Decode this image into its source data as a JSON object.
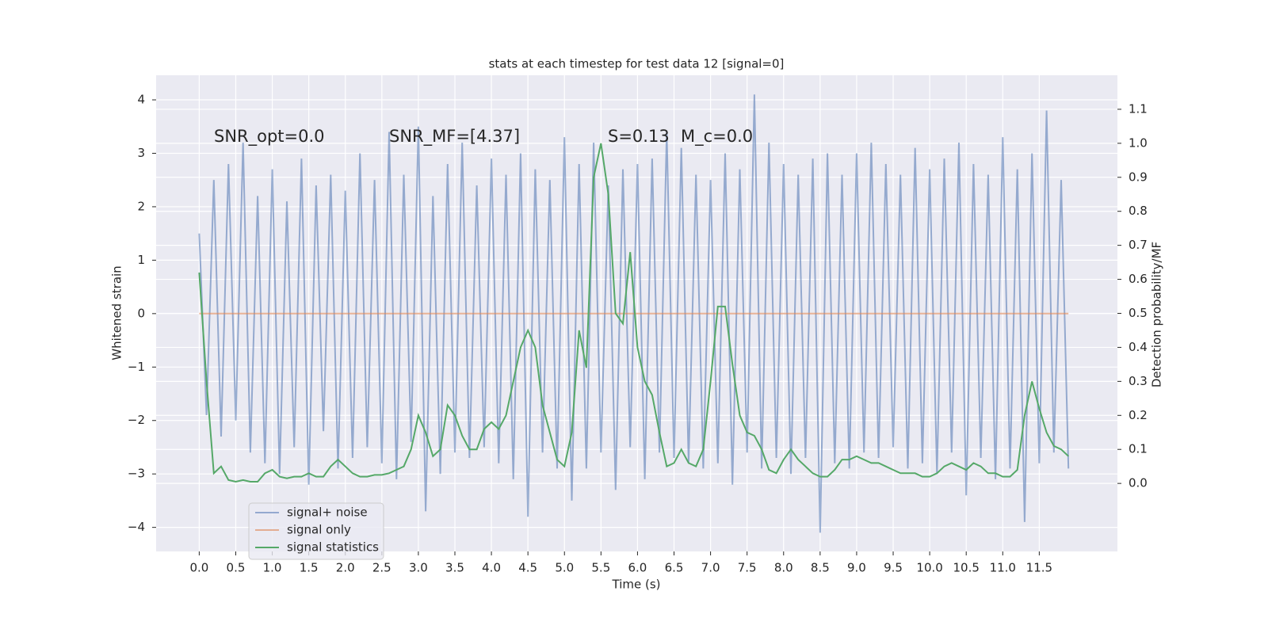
{
  "chart_data": {
    "type": "line",
    "title": "stats at each timestep for test data 12 [signal=0]",
    "xlabel": "Time (s)",
    "ylabel": "Whitened strain",
    "y2label": "Detection probability/MF",
    "annotations": [
      "SNR_opt=0.0",
      "SNR_MF=[4.37]",
      "S=0.13",
      "M_c=0.0"
    ],
    "grid": true,
    "legend": "lower left",
    "xlim": [
      -0.59,
      12.57
    ],
    "ylim": [
      -4.45,
      4.46
    ],
    "y2lim": [
      -0.2,
      1.2
    ],
    "xticks": [
      {
        "value": 0,
        "label": "0.0"
      },
      0.5,
      {
        "value": 1,
        "label": "1.0"
      },
      1.5,
      {
        "value": 2,
        "label": "2.0"
      },
      2.5,
      {
        "value": 3,
        "label": "3.0"
      },
      3.5,
      {
        "value": 4,
        "label": "4.0"
      },
      4.5,
      {
        "value": 5,
        "label": "5.0"
      },
      5.5,
      {
        "value": 6,
        "label": "6.0"
      },
      6.5,
      {
        "value": 7,
        "label": "7.0"
      },
      7.5,
      {
        "value": 8,
        "label": "8.0"
      },
      8.5,
      {
        "value": 9,
        "label": "9.0"
      },
      9.5,
      {
        "value": 10,
        "label": "10.0"
      },
      10.5,
      {
        "value": 11,
        "label": "11.0"
      },
      11.5
    ],
    "yticks": [
      {
        "value": -4,
        "label": "−4"
      },
      {
        "value": -3,
        "label": "−3"
      },
      {
        "value": -2,
        "label": "−2"
      },
      {
        "value": -1,
        "label": "−1"
      },
      0,
      1,
      2,
      3,
      4
    ],
    "y2ticks": [
      {
        "value": 0,
        "label": "0.0"
      },
      0.1,
      0.2,
      0.3,
      0.4,
      0.5,
      0.6,
      0.7,
      0.8,
      0.9,
      {
        "value": 1,
        "label": "1.0"
      },
      1.1
    ],
    "x": [
      0,
      0.1,
      0.2,
      0.3,
      0.4,
      0.5,
      0.6,
      0.7,
      0.8,
      0.9,
      1,
      1.1,
      1.2,
      1.3,
      1.4,
      1.5,
      1.6,
      1.7,
      1.8,
      1.9,
      2,
      2.1,
      2.2,
      2.3,
      2.4,
      2.5,
      2.6,
      2.7,
      2.8,
      2.9,
      3,
      3.1,
      3.2,
      3.3,
      3.4,
      3.5,
      3.6,
      3.7,
      3.8,
      3.9,
      4,
      4.1,
      4.2,
      4.3,
      4.4,
      4.5,
      4.6,
      4.7,
      4.8,
      4.9,
      5,
      5.1,
      5.2,
      5.3,
      5.4,
      5.5,
      5.6,
      5.7,
      5.8,
      5.9,
      6,
      6.1,
      6.2,
      6.3,
      6.4,
      6.5,
      6.6,
      6.7,
      6.8,
      6.9,
      7,
      7.1,
      7.2,
      7.3,
      7.4,
      7.5,
      7.6,
      7.7,
      7.8,
      7.9,
      8,
      8.1,
      8.2,
      8.3,
      8.4,
      8.5,
      8.6,
      8.7,
      8.8,
      8.9,
      9,
      9.1,
      9.2,
      9.3,
      9.4,
      9.5,
      9.6,
      9.7,
      9.8,
      9.9,
      10,
      10.1,
      10.2,
      10.3,
      10.4,
      10.5,
      10.6,
      10.7,
      10.8,
      10.9,
      11,
      11.1,
      11.2,
      11.3,
      11.4,
      11.5,
      11.6,
      11.7,
      11.8,
      11.9
    ],
    "series": [
      {
        "name": "signal+ noise",
        "color": "#4c72b0",
        "opacity": 0.55,
        "values": [
          1.5,
          -1.9,
          2.5,
          -2.3,
          2.8,
          -2.0,
          3.2,
          -2.6,
          2.2,
          -2.8,
          2.7,
          -3.0,
          2.1,
          -2.5,
          2.9,
          -3.2,
          2.4,
          -2.2,
          2.6,
          -2.9,
          2.3,
          -2.7,
          3.0,
          -2.5,
          2.5,
          -2.8,
          3.4,
          -3.1,
          2.6,
          -2.4,
          3.5,
          -3.7,
          2.2,
          -3.0,
          2.8,
          -2.6,
          3.2,
          -2.7,
          2.4,
          -2.5,
          2.9,
          -2.8,
          2.6,
          -3.1,
          3.0,
          -3.8,
          2.7,
          -2.6,
          2.5,
          -2.9,
          3.3,
          -3.5,
          2.8,
          -2.9,
          3.2,
          -2.6,
          2.4,
          -3.3,
          2.7,
          -2.5,
          2.8,
          -3.1,
          2.9,
          -2.6,
          3.4,
          -2.7,
          3.1,
          -2.8,
          2.6,
          -2.9,
          2.5,
          -2.8,
          3.0,
          -3.2,
          2.7,
          -2.6,
          4.1,
          -2.9,
          3.2,
          -2.7,
          2.8,
          -3.0,
          2.6,
          -2.7,
          2.9,
          -4.1,
          3.0,
          -2.8,
          2.6,
          -2.9,
          3.0,
          -2.6,
          3.2,
          -2.7,
          2.8,
          -2.5,
          2.6,
          -2.9,
          3.1,
          -2.8,
          2.7,
          -3.0,
          2.9,
          -2.6,
          3.2,
          -3.4,
          2.8,
          -2.7,
          2.6,
          -3.1,
          3.3,
          -2.9,
          2.7,
          -3.9,
          3.0,
          -2.8,
          3.8,
          -2.6,
          2.5,
          -2.9
        ]
      },
      {
        "name": "signal only",
        "color": "#dd8452",
        "opacity": 0.6,
        "values": [
          0,
          0,
          0,
          0,
          0,
          0,
          0,
          0,
          0,
          0,
          0,
          0,
          0,
          0,
          0,
          0,
          0,
          0,
          0,
          0,
          0,
          0,
          0,
          0,
          0,
          0,
          0,
          0,
          0,
          0,
          0,
          0,
          0,
          0,
          0,
          0,
          0,
          0,
          0,
          0,
          0,
          0,
          0,
          0,
          0,
          0,
          0,
          0,
          0,
          0,
          0,
          0,
          0,
          0,
          0,
          0,
          0,
          0,
          0,
          0,
          0,
          0,
          0,
          0,
          0,
          0,
          0,
          0,
          0,
          0,
          0,
          0,
          0,
          0,
          0,
          0,
          0,
          0,
          0,
          0,
          0,
          0,
          0,
          0,
          0,
          0,
          0,
          0,
          0,
          0,
          0,
          0,
          0,
          0,
          0,
          0,
          0,
          0,
          0,
          0,
          0,
          0,
          0,
          0,
          0,
          0,
          0,
          0,
          0,
          0,
          0,
          0,
          0,
          0,
          0,
          0,
          0,
          0,
          0,
          0
        ]
      },
      {
        "name": "signal statistics",
        "color": "#55a868",
        "opacity": 1,
        "axis": "y2",
        "values": [
          0.62,
          0.3,
          0.03,
          0.05,
          0.01,
          0.005,
          0.01,
          0.005,
          0.005,
          0.03,
          0.04,
          0.02,
          0.015,
          0.02,
          0.02,
          0.03,
          0.02,
          0.02,
          0.05,
          0.07,
          0.05,
          0.03,
          0.02,
          0.02,
          0.025,
          0.025,
          0.03,
          0.04,
          0.05,
          0.1,
          0.2,
          0.15,
          0.08,
          0.1,
          0.23,
          0.2,
          0.14,
          0.1,
          0.1,
          0.16,
          0.18,
          0.16,
          0.2,
          0.3,
          0.4,
          0.45,
          0.4,
          0.23,
          0.15,
          0.07,
          0.05,
          0.15,
          0.45,
          0.34,
          0.9,
          1.0,
          0.85,
          0.5,
          0.47,
          0.68,
          0.4,
          0.3,
          0.26,
          0.15,
          0.05,
          0.06,
          0.1,
          0.06,
          0.05,
          0.1,
          0.3,
          0.52,
          0.52,
          0.35,
          0.2,
          0.15,
          0.14,
          0.1,
          0.04,
          0.03,
          0.07,
          0.1,
          0.07,
          0.05,
          0.03,
          0.02,
          0.02,
          0.04,
          0.07,
          0.07,
          0.08,
          0.07,
          0.06,
          0.06,
          0.05,
          0.04,
          0.03,
          0.03,
          0.03,
          0.02,
          0.02,
          0.03,
          0.05,
          0.06,
          0.05,
          0.04,
          0.06,
          0.05,
          0.03,
          0.03,
          0.02,
          0.02,
          0.04,
          0.2,
          0.3,
          0.22,
          0.15,
          0.11,
          0.1,
          0.08
        ]
      }
    ]
  }
}
